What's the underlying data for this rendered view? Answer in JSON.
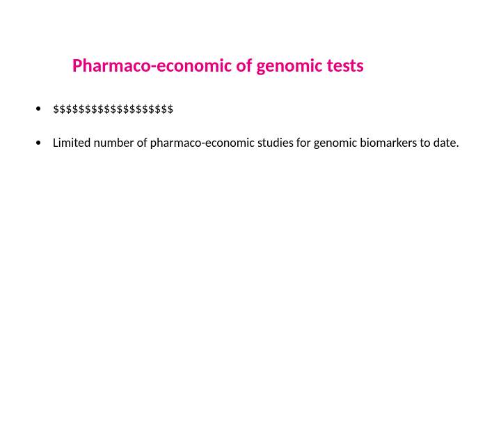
{
  "slide": {
    "title": "Pharmaco-economic of genomic tests",
    "title_color": "#e6007e",
    "title_fontsize": 27,
    "background_color": "#ffffff",
    "bullets": [
      {
        "text": "$$$$$$$$$$$$$$$$$$$"
      },
      {
        "text": "Limited number of pharmaco-economic studies for genomic biomarkers to date."
      }
    ],
    "bullet_fontsize": 18,
    "bullet_color": "#000000"
  }
}
